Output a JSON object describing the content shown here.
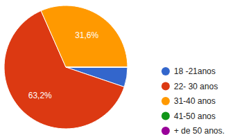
{
  "chart_data": {
    "type": "pie",
    "categories": [
      "18 -21anos",
      "22- 30 anos",
      "31-40 anos",
      "41-50 anos",
      "+ de 50 anos."
    ],
    "values": [
      5.2,
      63.2,
      31.6,
      0,
      0
    ],
    "value_labels": [
      null,
      "63,2%",
      "31,6%",
      null,
      null
    ],
    "colors": [
      "#3366cc",
      "#dc3912",
      "#ff9900",
      "#109618",
      "#990099"
    ],
    "data_labels": true,
    "legend": "right"
  }
}
